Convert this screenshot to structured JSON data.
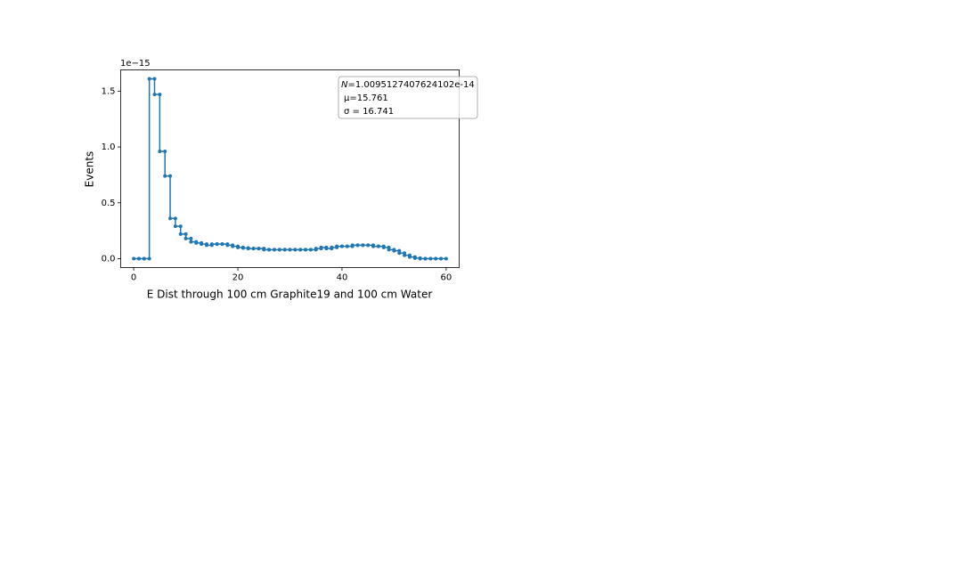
{
  "chart_data": {
    "type": "histogram",
    "step": true,
    "markers": true,
    "color": "#1f77b4",
    "x_label": "E Dist through 100 cm Graphite19 and 100 cm Water",
    "y_label": "Events",
    "y_offset_text": "1e−15",
    "bins": [
      0,
      1,
      2,
      3,
      4,
      5,
      6,
      7,
      8,
      9,
      10,
      11,
      12,
      13,
      14,
      15,
      16,
      17,
      18,
      19,
      20,
      21,
      22,
      23,
      24,
      25,
      26,
      27,
      28,
      29,
      30,
      31,
      32,
      33,
      34,
      35,
      36,
      37,
      38,
      39,
      40,
      41,
      42,
      43,
      44,
      45,
      46,
      47,
      48,
      49,
      50,
      51,
      52,
      53,
      54,
      55,
      56,
      57,
      58,
      59,
      60
    ],
    "counts": [
      0,
      0,
      0,
      1.61,
      1.47,
      0.96,
      0.74,
      0.36,
      0.29,
      0.22,
      0.18,
      0.15,
      0.14,
      0.13,
      0.12,
      0.13,
      0.13,
      0.13,
      0.12,
      0.11,
      0.1,
      0.095,
      0.09,
      0.09,
      0.09,
      0.08,
      0.08,
      0.08,
      0.08,
      0.08,
      0.08,
      0.08,
      0.08,
      0.08,
      0.08,
      0.09,
      0.1,
      0.09,
      0.1,
      0.11,
      0.11,
      0.11,
      0.12,
      0.12,
      0.12,
      0.12,
      0.11,
      0.11,
      0.1,
      0.08,
      0.07,
      0.05,
      0.03,
      0.015,
      0.005,
      0,
      0,
      0,
      0,
      0
    ],
    "xlim": [
      -2.5,
      62.5
    ],
    "ylim": [
      -0.08,
      1.69
    ],
    "xticks": [
      0,
      20,
      40,
      60
    ],
    "yticks": [
      {
        "value": 0,
        "label": "0.0"
      },
      {
        "value": 0.5,
        "label": "0.5"
      },
      {
        "value": 1.0,
        "label": "1.0"
      },
      {
        "value": 1.5,
        "label": "1.5"
      }
    ],
    "annotation": {
      "N_symbol": "N",
      "N_text": "=1.0095127407624102e-14",
      "mu_text": "μ=15.761",
      "sigma_text": "σ = 16.741"
    }
  }
}
